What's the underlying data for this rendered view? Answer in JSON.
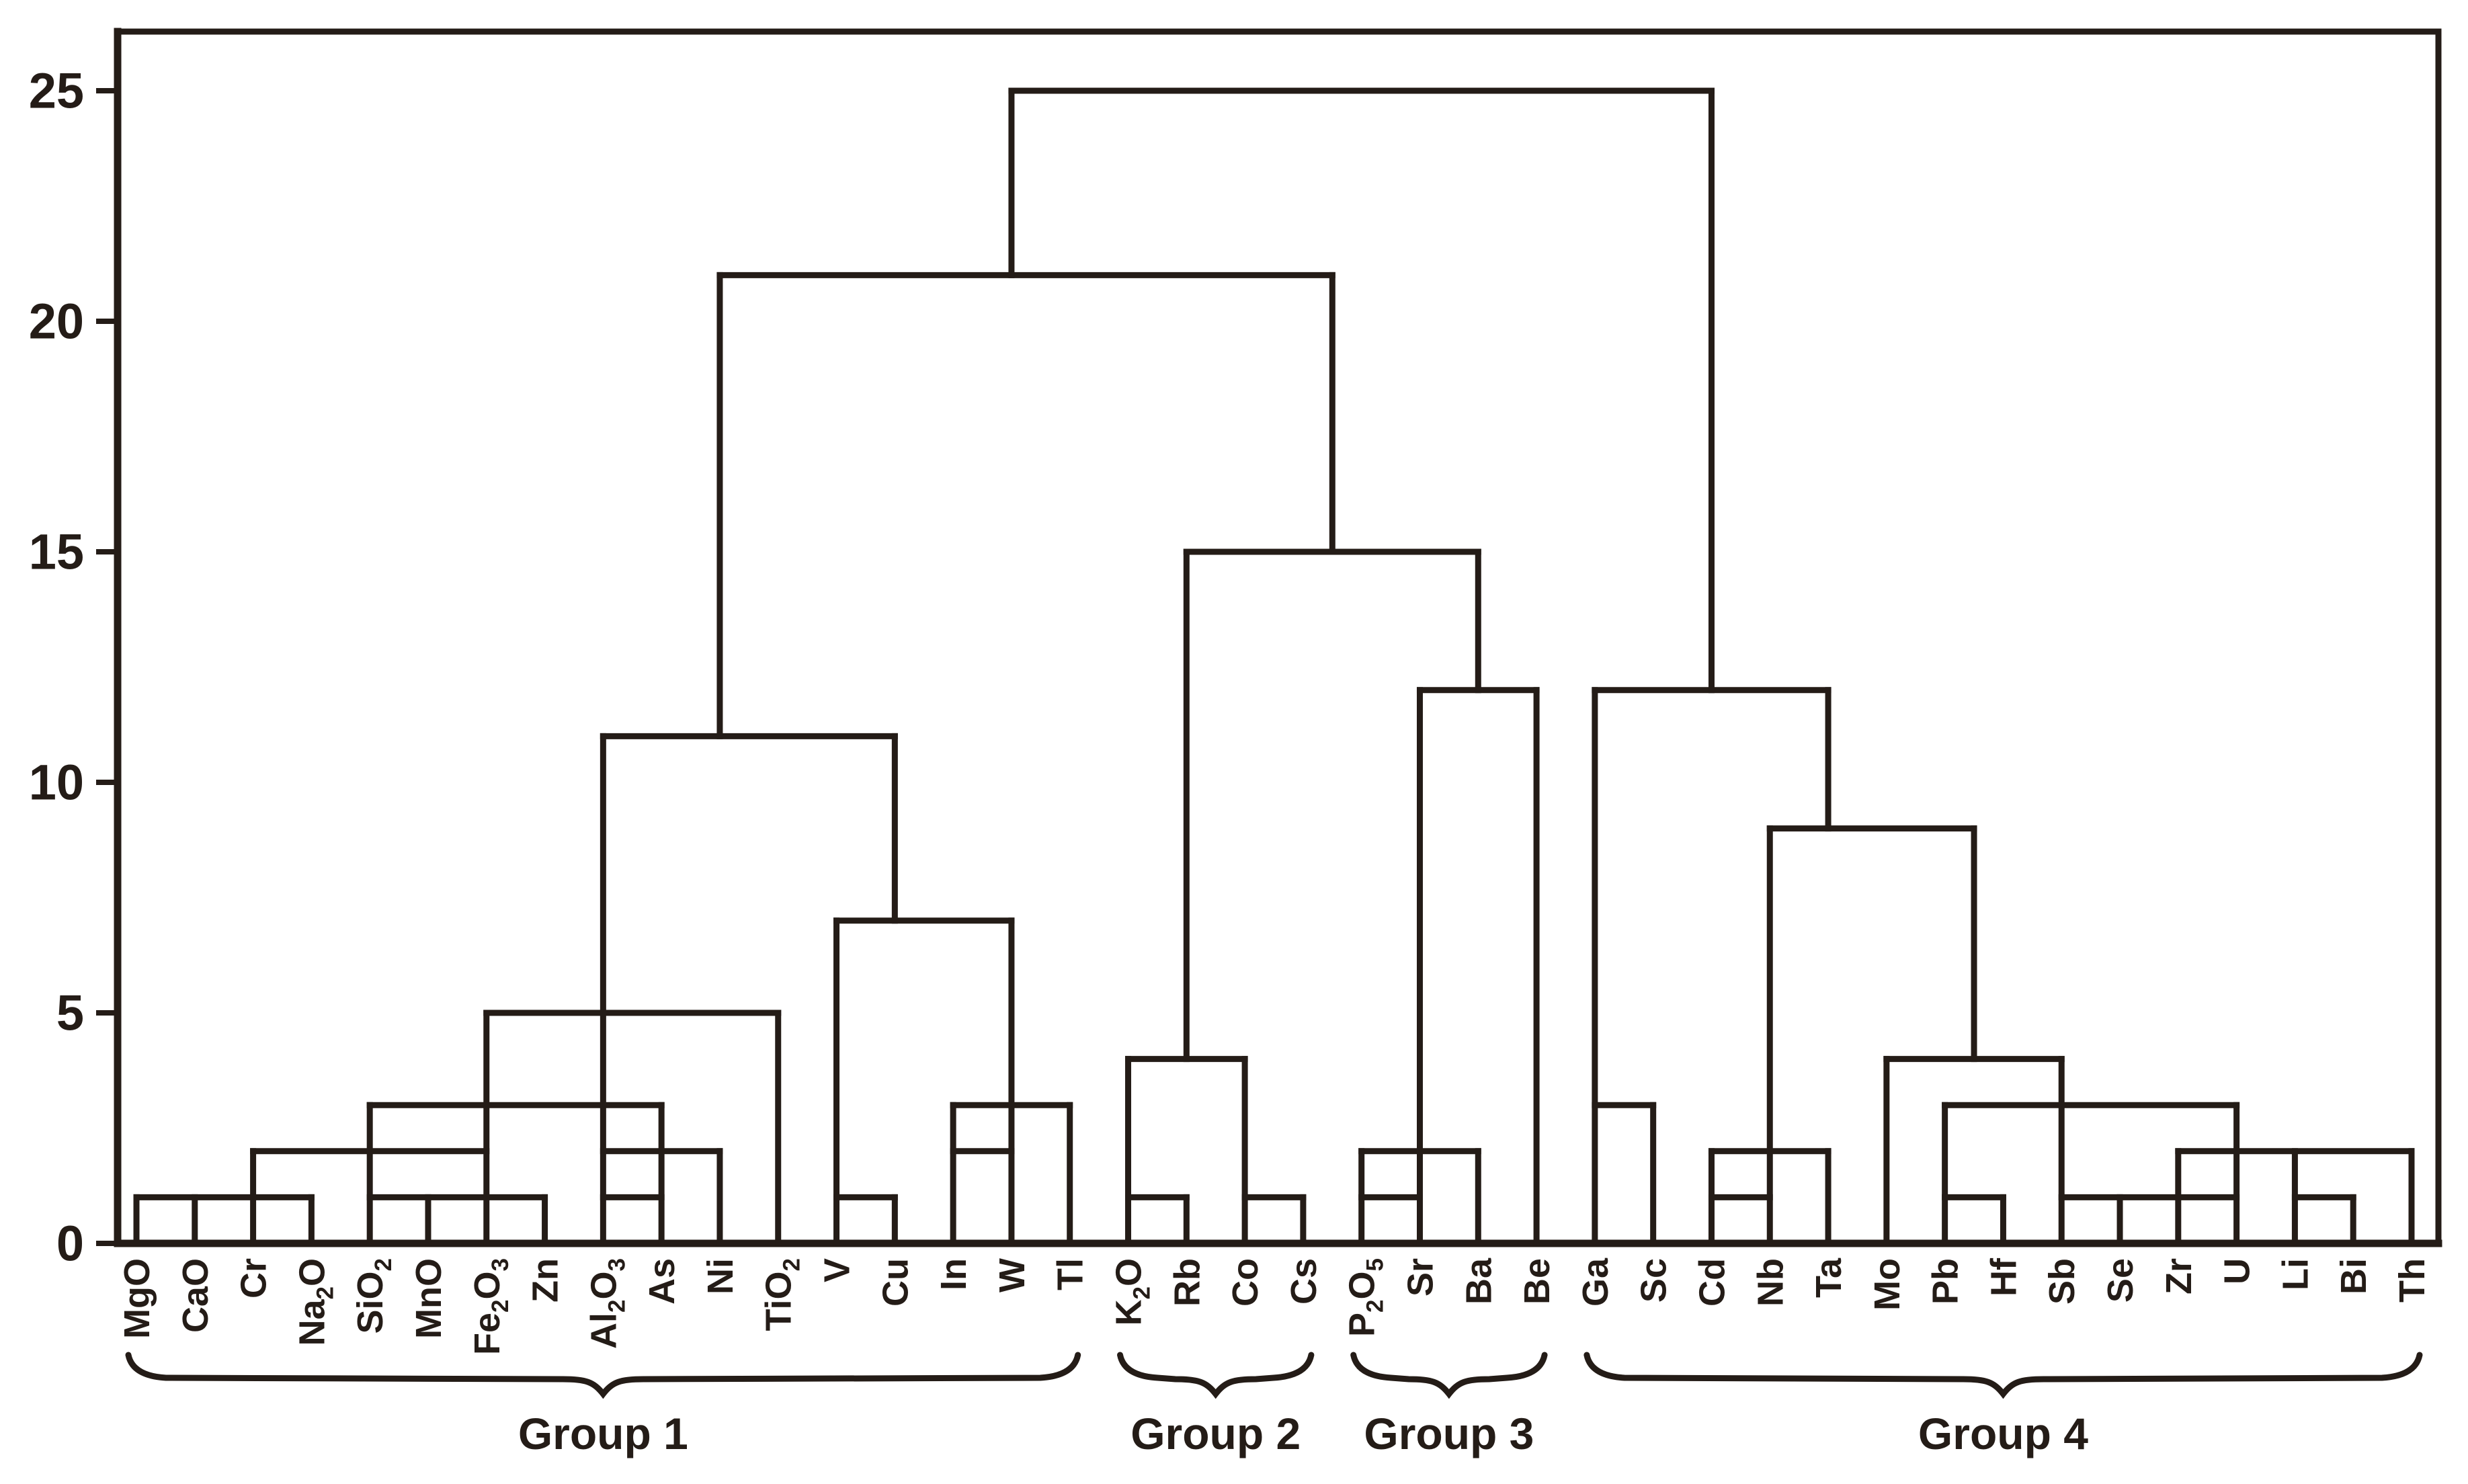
{
  "page": {
    "title": "Hierarchical cluster dendrogram of major oxides and trace elements",
    "background": "#ffffff"
  },
  "chart_data": {
    "type": "dendrogram",
    "orientation": "leaves-on-bottom",
    "title": "",
    "xlabel": "",
    "ylabel": "",
    "y_axis": {
      "min": 0,
      "max": 25,
      "ticks": [
        0,
        5,
        10,
        15,
        20,
        25
      ]
    },
    "grid": false,
    "legend": null,
    "leaves": [
      "MgO",
      "CaO",
      "Cr",
      "Na_2O",
      "SiO_2",
      "MnO",
      "Fe_2O_3",
      "Zn",
      "Al_2O_3",
      "As",
      "Ni",
      "TiO_2",
      "V",
      "Cu",
      "In",
      "W",
      "Tl",
      "K_2O",
      "Rb",
      "Co",
      "Cs",
      "P_2O_5",
      "Sr",
      "Ba",
      "Be",
      "Ga",
      "Sc",
      "Cd",
      "Nb",
      "Ta",
      "Mo",
      "Pb",
      "Hf",
      "Sb",
      "Se",
      "Zr",
      "U",
      "Li",
      "Bi",
      "Th"
    ],
    "merges": [
      {
        "cluster": "MgO+CaO+Cr+Na2O",
        "height": 1
      },
      {
        "cluster": "SiO2+MnO+Fe2O3+Zn",
        "height": 1
      },
      {
        "cluster": "(MgO..Na2O)+(SiO2..Zn)",
        "height": 2
      },
      {
        "cluster": "Al2O3+As",
        "height": 1
      },
      {
        "cluster": "(Al2O3+As)+Ni",
        "height": 2
      },
      {
        "cluster": "(MgO..Zn)+(Al2O3..Ni)",
        "height": 3
      },
      {
        "cluster": "(MgO..Ni)+TiO2",
        "height": 5
      },
      {
        "cluster": "V+Cu",
        "height": 1
      },
      {
        "cluster": "In+W",
        "height": 2
      },
      {
        "cluster": "(In+W)+Tl",
        "height": 3
      },
      {
        "cluster": "(V+Cu)+(In+W+Tl)",
        "height": 7
      },
      {
        "cluster": "(MgO..TiO2)+(V..Tl)",
        "height": 11
      },
      {
        "cluster": "K2O+Rb",
        "height": 1
      },
      {
        "cluster": "Co+Cs",
        "height": 1
      },
      {
        "cluster": "(K2O+Rb)+(Co+Cs)",
        "height": 4
      },
      {
        "cluster": "P2O5+Sr",
        "height": 1
      },
      {
        "cluster": "(P2O5+Sr)+Ba",
        "height": 2
      },
      {
        "cluster": "(P2O5+Sr+Ba)+Be",
        "height": 12
      },
      {
        "cluster": "(K2O..Cs)+(P2O5..Be)",
        "height": 15
      },
      {
        "cluster": "(MgO..Tl)+(K2O..Be)",
        "height": 21
      },
      {
        "cluster": "Ga+Sc",
        "height": 3
      },
      {
        "cluster": "Cd+Nb",
        "height": 1
      },
      {
        "cluster": "(Cd+Nb)+Ta",
        "height": 2
      },
      {
        "cluster": "Pb+Hf",
        "height": 1
      },
      {
        "cluster": "Sb+Se+Zr+U",
        "height": 1
      },
      {
        "cluster": "Li+Bi",
        "height": 1
      },
      {
        "cluster": "(Sb+Se+Zr+U)+(Li+Bi)+Th",
        "height": 2
      },
      {
        "cluster": "(Pb+Hf)+(Sb..Th)",
        "height": 3
      },
      {
        "cluster": "Mo+(Pb..Th)",
        "height": 4
      },
      {
        "cluster": "(Cd+Nb+Ta)+(Mo..Th)",
        "height": 9
      },
      {
        "cluster": "(Ga+Sc)+(Cd..Th)",
        "height": 12
      },
      {
        "cluster": "(MgO..Be)+(Ga..Th)",
        "height": 25
      }
    ],
    "render": {
      "bars": [
        [
          0,
          3,
          1
        ],
        [
          4,
          7,
          1
        ],
        [
          2,
          6,
          2
        ],
        [
          8,
          9,
          1
        ],
        [
          8,
          10,
          2
        ],
        [
          4,
          9,
          3
        ],
        [
          6,
          11,
          5
        ],
        [
          12,
          13,
          1
        ],
        [
          14,
          15,
          2
        ],
        [
          14,
          16,
          3
        ],
        [
          12,
          15,
          7
        ],
        [
          8,
          13,
          11
        ],
        [
          10,
          20.5,
          21
        ],
        [
          17,
          18,
          1
        ],
        [
          19,
          20,
          1
        ],
        [
          17,
          19,
          4
        ],
        [
          21,
          22,
          1
        ],
        [
          21,
          23,
          2
        ],
        [
          22,
          24,
          12
        ],
        [
          18,
          23,
          15
        ],
        [
          15,
          27,
          25
        ],
        [
          25,
          26,
          3
        ],
        [
          27,
          28,
          1
        ],
        [
          27,
          29,
          2
        ],
        [
          30,
          33,
          4
        ],
        [
          31,
          32,
          1
        ],
        [
          33,
          36,
          1
        ],
        [
          37,
          38,
          1
        ],
        [
          35,
          39,
          2
        ],
        [
          31,
          36,
          3
        ],
        [
          28,
          31.5,
          9
        ],
        [
          25,
          29,
          12
        ]
      ],
      "verticals": [
        [
          0,
          0,
          1
        ],
        [
          1,
          0,
          1
        ],
        [
          2,
          0,
          2
        ],
        [
          3,
          0,
          1
        ],
        [
          4,
          0,
          3
        ],
        [
          5,
          0,
          1
        ],
        [
          6,
          0,
          5
        ],
        [
          7,
          0,
          1
        ],
        [
          8,
          0,
          11
        ],
        [
          9,
          0,
          3
        ],
        [
          10,
          0,
          2
        ],
        [
          10,
          11,
          21
        ],
        [
          11,
          0,
          5
        ],
        [
          12,
          0,
          7
        ],
        [
          13,
          0,
          1
        ],
        [
          13,
          7,
          11
        ],
        [
          14,
          0,
          3
        ],
        [
          15,
          0,
          7
        ],
        [
          15,
          21,
          25
        ],
        [
          16,
          0,
          3
        ],
        [
          17,
          0,
          4
        ],
        [
          18,
          0,
          1
        ],
        [
          18,
          4,
          15
        ],
        [
          19,
          0,
          4
        ],
        [
          20,
          0,
          1
        ],
        [
          20.5,
          15,
          21
        ],
        [
          21,
          0,
          2
        ],
        [
          22,
          0,
          12
        ],
        [
          23,
          0,
          2
        ],
        [
          23,
          12,
          15
        ],
        [
          24,
          0,
          12
        ],
        [
          25,
          0,
          12
        ],
        [
          26,
          0,
          3
        ],
        [
          27,
          0,
          2
        ],
        [
          27,
          12,
          25
        ],
        [
          28,
          0,
          9
        ],
        [
          29,
          0,
          2
        ],
        [
          29,
          9,
          12
        ],
        [
          30,
          0,
          4
        ],
        [
          31,
          0,
          3
        ],
        [
          32,
          0,
          1
        ],
        [
          33,
          0,
          4
        ],
        [
          34,
          0,
          1
        ],
        [
          35,
          0,
          2
        ],
        [
          36,
          0,
          3
        ],
        [
          37,
          0,
          2
        ],
        [
          38,
          0,
          1
        ],
        [
          39,
          0,
          2
        ],
        [
          31.5,
          4,
          9
        ]
      ]
    },
    "groups": [
      {
        "label": "Group 1",
        "from": 0,
        "to": 16
      },
      {
        "label": "Group 2",
        "from": 17,
        "to": 20
      },
      {
        "label": "Group 3",
        "from": 21,
        "to": 24
      },
      {
        "label": "Group 4",
        "from": 25,
        "to": 39
      }
    ],
    "colors": {
      "ink": "#241c17",
      "background": "#ffffff"
    }
  }
}
